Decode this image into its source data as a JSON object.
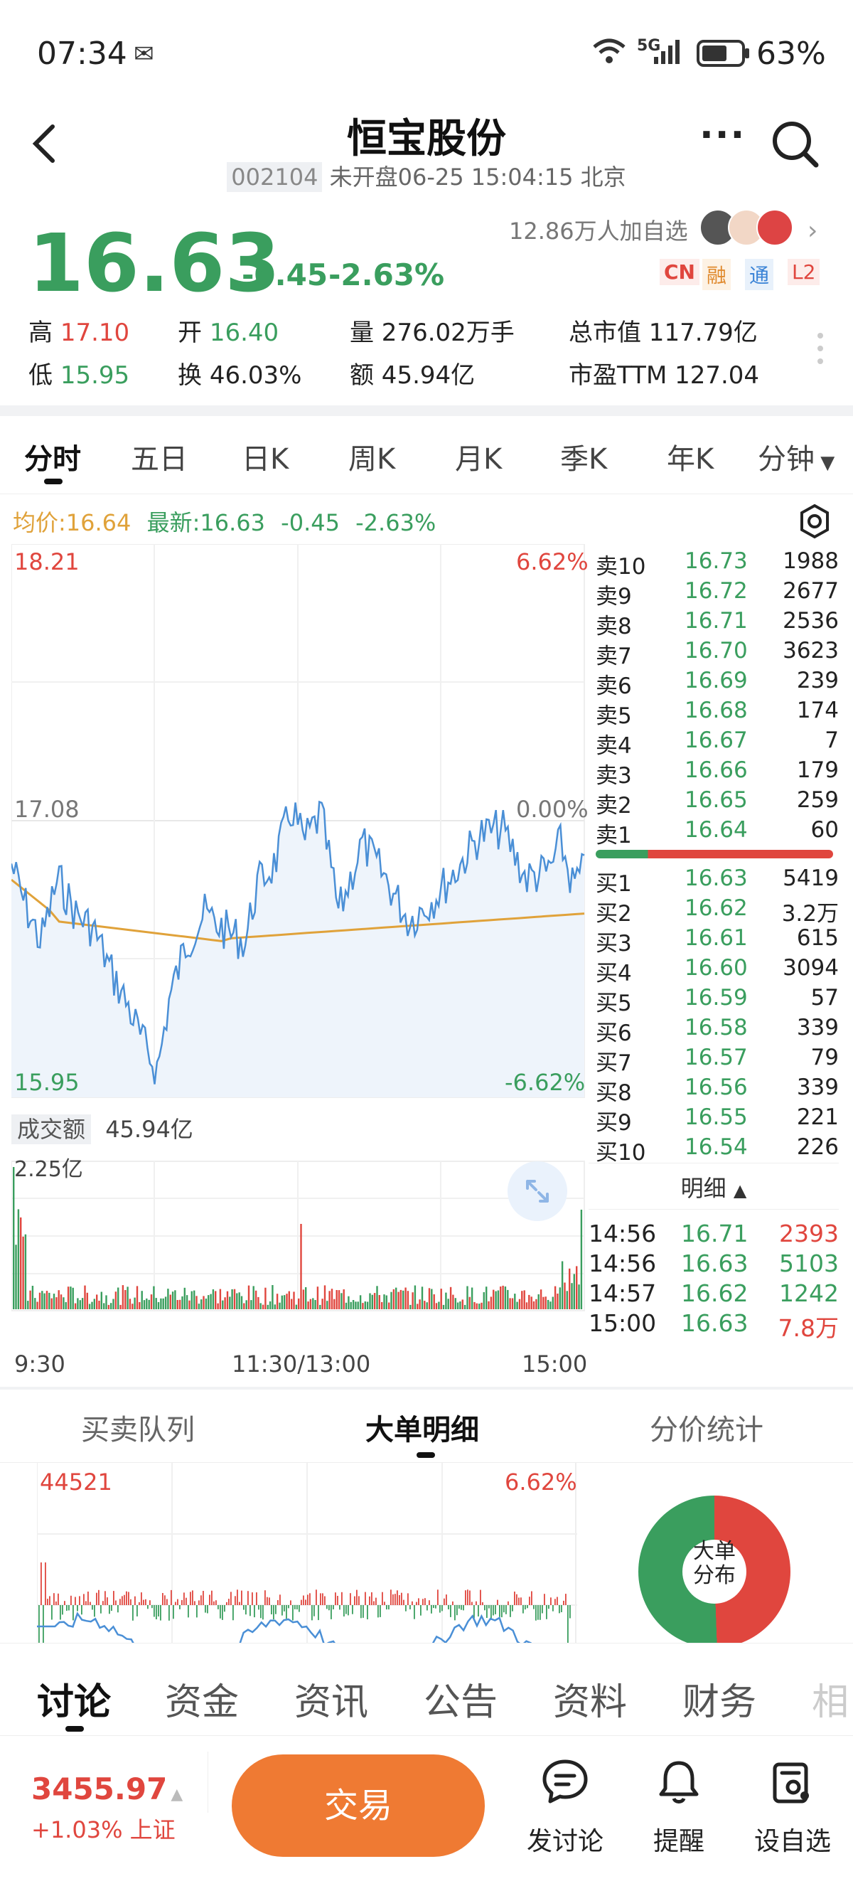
{
  "status": {
    "time": "07:34",
    "network": "5G",
    "battery": "63%"
  },
  "header": {
    "title": "恒宝股份",
    "code": "002104",
    "market_status": "未开盘06-25 15:04:15 北京"
  },
  "quote": {
    "price": "16.63",
    "change": "-0.45",
    "change_pct": "-2.63%",
    "watchers": "12.86万人加自选",
    "badges": [
      "CN",
      "融",
      "通",
      "L2"
    ],
    "high_label": "高",
    "high": "17.10",
    "low_label": "低",
    "low": "15.95",
    "open_label": "开",
    "open": "16.40",
    "turnover_label": "换",
    "turnover": "46.03%",
    "volume": "量 276.02万手",
    "amount": "额 45.94亿",
    "mktcap": "总市值 117.79亿",
    "pe": "市盈TTM 127.04"
  },
  "ktabs": [
    "分时",
    "五日",
    "日K",
    "周K",
    "月K",
    "季K",
    "年K",
    "分钟"
  ],
  "legend": {
    "avg": "均价:16.64",
    "latest": "最新:16.63",
    "chg": "-0.45",
    "chg_pct": "-2.63%"
  },
  "axis": {
    "top": "18.21",
    "top_pct": "6.62%",
    "mid": "17.08",
    "mid_pct": "0.00%",
    "bot": "15.95",
    "bot_pct": "-6.62%",
    "vol_label": "成交额",
    "vol_total": "45.94亿",
    "vol_max": "2.25亿",
    "t_start": "9:30",
    "t_mid": "11:30/13:00",
    "t_end": "15:00"
  },
  "orderbook": {
    "asks": [
      {
        "label": "卖10",
        "price": "16.73",
        "vol": "1988"
      },
      {
        "label": "卖9",
        "price": "16.72",
        "vol": "2677"
      },
      {
        "label": "卖8",
        "price": "16.71",
        "vol": "2536"
      },
      {
        "label": "卖7",
        "price": "16.70",
        "vol": "3623"
      },
      {
        "label": "卖6",
        "price": "16.69",
        "vol": "239"
      },
      {
        "label": "卖5",
        "price": "16.68",
        "vol": "174"
      },
      {
        "label": "卖4",
        "price": "16.67",
        "vol": "7"
      },
      {
        "label": "卖3",
        "price": "16.66",
        "vol": "179"
      },
      {
        "label": "卖2",
        "price": "16.65",
        "vol": "259"
      },
      {
        "label": "卖1",
        "price": "16.64",
        "vol": "60"
      }
    ],
    "bids": [
      {
        "label": "买1",
        "price": "16.63",
        "vol": "5419"
      },
      {
        "label": "买2",
        "price": "16.62",
        "vol": "3.2万"
      },
      {
        "label": "买3",
        "price": "16.61",
        "vol": "615"
      },
      {
        "label": "买4",
        "price": "16.60",
        "vol": "3094"
      },
      {
        "label": "买5",
        "price": "16.59",
        "vol": "57"
      },
      {
        "label": "买6",
        "price": "16.58",
        "vol": "339"
      },
      {
        "label": "买7",
        "price": "16.57",
        "vol": "79"
      },
      {
        "label": "买8",
        "price": "16.56",
        "vol": "339"
      },
      {
        "label": "买9",
        "price": "16.55",
        "vol": "221"
      },
      {
        "label": "买10",
        "price": "16.54",
        "vol": "226"
      }
    ],
    "detail_label": "明细"
  },
  "trades": [
    {
      "time": "14:56",
      "price": "16.71",
      "vol": "2393"
    },
    {
      "time": "14:56",
      "price": "16.63",
      "vol": "5103"
    },
    {
      "time": "14:57",
      "price": "16.62",
      "vol": "1242"
    },
    {
      "time": "15:00",
      "price": "16.63",
      "vol": "7.8万"
    }
  ],
  "bottom_tabs": [
    "买卖队列",
    "大单明细",
    "分价统计"
  ],
  "bigorder": {
    "max": "44521",
    "pct": "6.62%",
    "donut_label_1": "大单",
    "donut_label_2": "分布"
  },
  "content_tabs": [
    "讨论",
    "资金",
    "资讯",
    "公告",
    "资料",
    "财务",
    "相"
  ],
  "footer": {
    "index_value": "3455.97",
    "index_change": "+1.03% 上证",
    "trade": "交易",
    "discuss": "发讨论",
    "remind": "提醒",
    "watch": "设自选"
  },
  "colors": {
    "up": "#e0463e",
    "down": "#3a9e5e",
    "line": "#4a8fd6",
    "avg": "#e0a23a",
    "trade_btn": "#ef7a33"
  }
}
